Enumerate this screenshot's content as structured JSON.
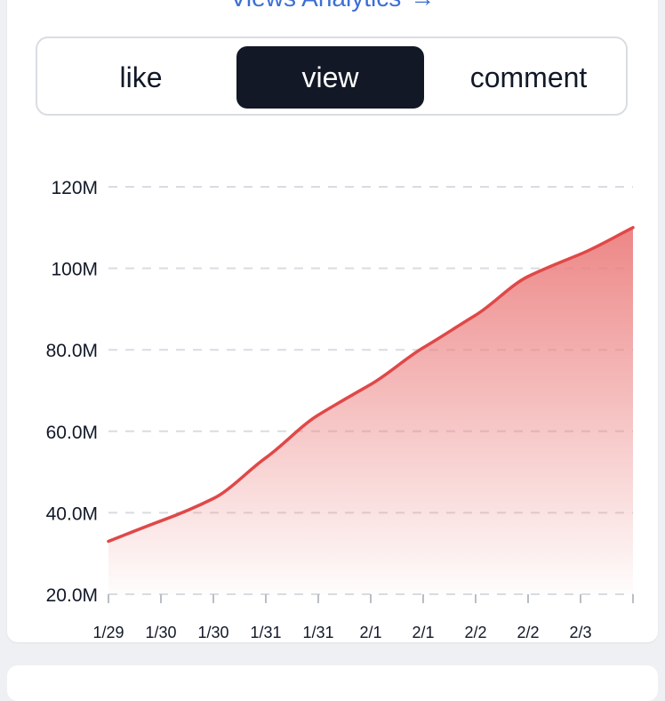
{
  "header": {
    "link_label": "Views Analytics",
    "link_arrow": "→"
  },
  "tabs": [
    {
      "label": "like",
      "active": false
    },
    {
      "label": "view",
      "active": true
    },
    {
      "label": "comment",
      "active": false
    }
  ],
  "colors": {
    "line": "#e04848",
    "fill_top": "#ec8080",
    "active_tab": "#121826"
  },
  "chart_data": {
    "type": "area",
    "title": "",
    "xlabel": "",
    "ylabel": "",
    "x": [
      "1/29",
      "1/30",
      "1/30",
      "1/31",
      "1/31",
      "2/1",
      "2/1",
      "2/2",
      "2/2",
      "2/3",
      ""
    ],
    "y_ticks": [
      "20.0M",
      "40.0M",
      "60.0M",
      "80.0M",
      "100M",
      "120M"
    ],
    "ylim": [
      20,
      120
    ],
    "y_unit": "M",
    "series": [
      {
        "values": [
          33,
          38,
          43.5,
          53.5,
          64,
          71.5,
          80.5,
          88.5,
          98,
          103.5,
          110
        ]
      }
    ],
    "grid": "horizontal-dashed",
    "legend": "none"
  }
}
